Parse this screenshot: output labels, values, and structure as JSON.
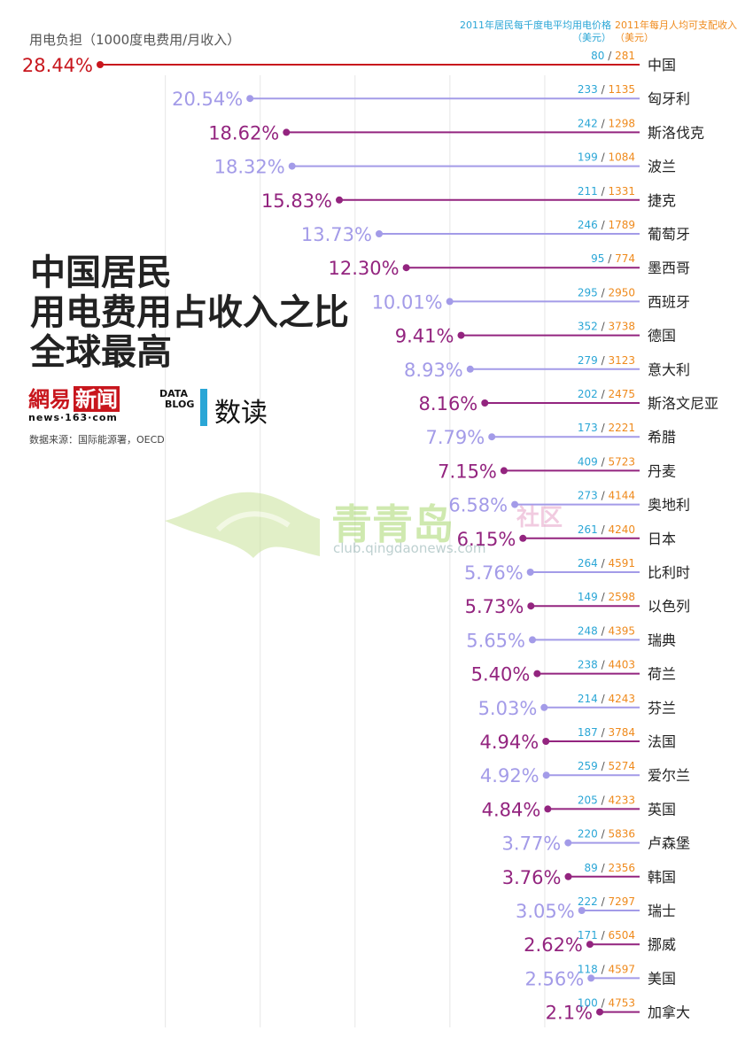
{
  "header": {
    "y_label": "用电负担（1000度电费用/月收入）",
    "col_price_label": "2011年居民每千度电平均用电价格（美元）",
    "col_income_label": "2011年每月人均可支配收入（美元）"
  },
  "title_lines": [
    "中国居民",
    "用电费用占收入之比",
    "全球最高"
  ],
  "branding": {
    "logo_main": "網易",
    "logo_box": "新闻",
    "logo_url": "news·163·com",
    "datablog_line1": "DATA",
    "datablog_line2": "BLOG",
    "datablog_cn": "数读",
    "source": "数据来源：国际能源署，OECD"
  },
  "watermark": {
    "text": "青青岛",
    "text2": "社区",
    "url": "club.qingdaonews.com"
  },
  "colors": {
    "china": "#c8161d",
    "dark_purple": "#93247f",
    "light_purple": "#a39be8",
    "price": "#2aa6d6",
    "income": "#ef8a1c",
    "gridline": "#e6e6e6"
  },
  "chart_data": {
    "type": "lollipop",
    "title": "中国居民用电费用占收入之比全球最高",
    "ylabel": "用电负担（1000度电费用/月收入）",
    "xlim": [
      0,
      30
    ],
    "grid": true,
    "series": [
      {
        "name": "用电负担",
        "unit": "%"
      },
      {
        "name": "2011年居民每千度电平均用电价格（美元）"
      },
      {
        "name": "2011年每月人均可支配收入（美元）"
      }
    ],
    "rows": [
      {
        "country": "中国",
        "burden": 28.44,
        "label": "28.44%",
        "price": 80,
        "income": 281
      },
      {
        "country": "匈牙利",
        "burden": 20.54,
        "label": "20.54%",
        "price": 233,
        "income": 1135
      },
      {
        "country": "斯洛伐克",
        "burden": 18.62,
        "label": "18.62%",
        "price": 242,
        "income": 1298
      },
      {
        "country": "波兰",
        "burden": 18.32,
        "label": "18.32%",
        "price": 199,
        "income": 1084
      },
      {
        "country": "捷克",
        "burden": 15.83,
        "label": "15.83%",
        "price": 211,
        "income": 1331
      },
      {
        "country": "葡萄牙",
        "burden": 13.73,
        "label": "13.73%",
        "price": 246,
        "income": 1789
      },
      {
        "country": "墨西哥",
        "burden": 12.3,
        "label": "12.30%",
        "price": 95,
        "income": 774
      },
      {
        "country": "西班牙",
        "burden": 10.01,
        "label": "10.01%",
        "price": 295,
        "income": 2950
      },
      {
        "country": "德国",
        "burden": 9.41,
        "label": "9.41%",
        "price": 352,
        "income": 3738
      },
      {
        "country": "意大利",
        "burden": 8.93,
        "label": "8.93%",
        "price": 279,
        "income": 3123
      },
      {
        "country": "斯洛文尼亚",
        "burden": 8.16,
        "label": "8.16%",
        "price": 202,
        "income": 2475
      },
      {
        "country": "希腊",
        "burden": 7.79,
        "label": "7.79%",
        "price": 173,
        "income": 2221
      },
      {
        "country": "丹麦",
        "burden": 7.15,
        "label": "7.15%",
        "price": 409,
        "income": 5723
      },
      {
        "country": "奥地利",
        "burden": 6.58,
        "label": "6.58%",
        "price": 273,
        "income": 4144
      },
      {
        "country": "日本",
        "burden": 6.15,
        "label": "6.15%",
        "price": 261,
        "income": 4240
      },
      {
        "country": "比利时",
        "burden": 5.76,
        "label": "5.76%",
        "price": 264,
        "income": 4591
      },
      {
        "country": "以色列",
        "burden": 5.73,
        "label": "5.73%",
        "price": 149,
        "income": 2598
      },
      {
        "country": "瑞典",
        "burden": 5.65,
        "label": "5.65%",
        "price": 248,
        "income": 4395
      },
      {
        "country": "荷兰",
        "burden": 5.4,
        "label": "5.40%",
        "price": 238,
        "income": 4403
      },
      {
        "country": "芬兰",
        "burden": 5.03,
        "label": "5.03%",
        "price": 214,
        "income": 4243
      },
      {
        "country": "法国",
        "burden": 4.94,
        "label": "4.94%",
        "price": 187,
        "income": 3784
      },
      {
        "country": "爱尔兰",
        "burden": 4.92,
        "label": "4.92%",
        "price": 259,
        "income": 5274
      },
      {
        "country": "英国",
        "burden": 4.84,
        "label": "4.84%",
        "price": 205,
        "income": 4233
      },
      {
        "country": "卢森堡",
        "burden": 3.77,
        "label": "3.77%",
        "price": 220,
        "income": 5836
      },
      {
        "country": "韩国",
        "burden": 3.76,
        "label": "3.76%",
        "price": 89,
        "income": 2356
      },
      {
        "country": "瑞士",
        "burden": 3.05,
        "label": "3.05%",
        "price": 222,
        "income": 7297
      },
      {
        "country": "挪威",
        "burden": 2.62,
        "label": "2.62%",
        "price": 171,
        "income": 6504
      },
      {
        "country": "美国",
        "burden": 2.56,
        "label": "2.56%",
        "price": 118,
        "income": 4597
      },
      {
        "country": "加拿大",
        "burden": 2.1,
        "label": "2.1%",
        "price": 100,
        "income": 4753
      }
    ]
  }
}
